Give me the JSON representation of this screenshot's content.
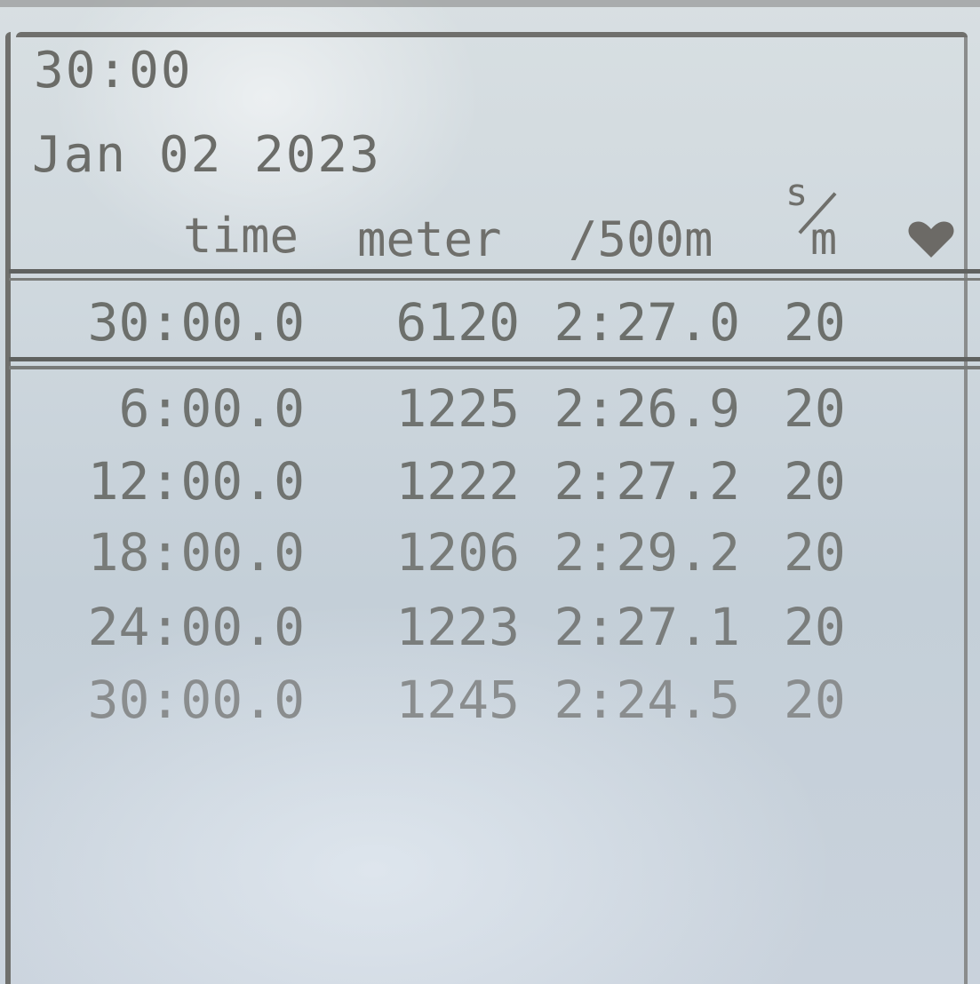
{
  "summary": {
    "duration": "30:00",
    "date": "Jan 02 2023"
  },
  "columns": {
    "time": "time",
    "meter": "meter",
    "pace": "/500m",
    "spm_top": "s",
    "spm_bottom": "m",
    "heart_icon": "heart-icon"
  },
  "total": {
    "time": "30:00.0",
    "meter": "6120",
    "pace": "2:27.0",
    "spm": "20"
  },
  "splits": [
    {
      "time": "6:00.0",
      "meter": "1225",
      "pace": "2:26.9",
      "spm": "20"
    },
    {
      "time": "12:00.0",
      "meter": "1222",
      "pace": "2:27.2",
      "spm": "20"
    },
    {
      "time": "18:00.0",
      "meter": "1206",
      "pace": "2:29.2",
      "spm": "20"
    },
    {
      "time": "24:00.0",
      "meter": "1223",
      "pace": "2:27.1",
      "spm": "20"
    },
    {
      "time": "30:00.0",
      "meter": "1245",
      "pace": "2:24.5",
      "spm": "20"
    }
  ],
  "colors": {
    "lcd_background": "#cfd8de",
    "lcd_text": "#6b6c68",
    "rule": "#5f615f"
  }
}
